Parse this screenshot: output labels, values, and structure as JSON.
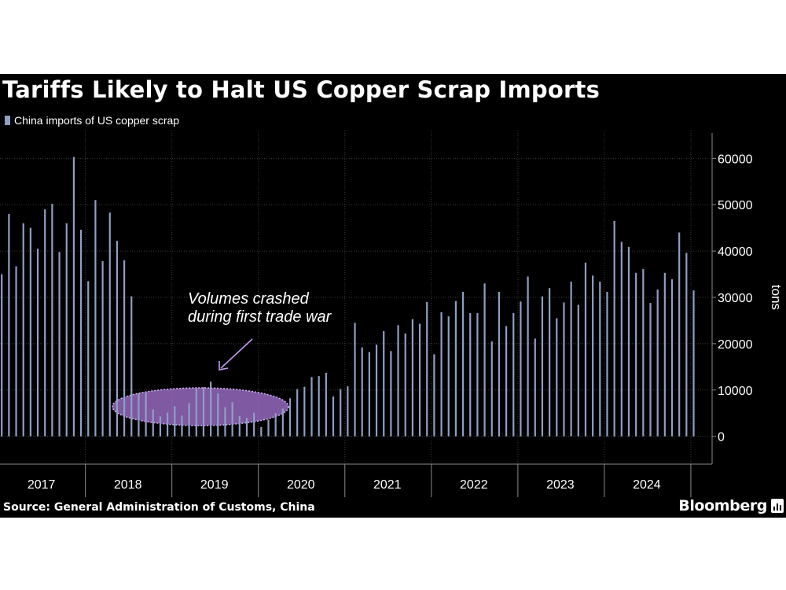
{
  "title": "Tariffs Likely to Halt US Copper Scrap Imports",
  "legend_label": "China imports of US copper scrap",
  "source": "Source: General Administration of Customs, China",
  "brand": "Bloomberg",
  "colors": {
    "bar": "#8f9fc4",
    "highlight": "#b07ce0",
    "arrow": "#c29bf0",
    "grid": "#3a3a3a",
    "axis": "#8a8a8a",
    "text": "#ffffff"
  },
  "chart_data": {
    "type": "bar",
    "title": "Tariffs Likely to Halt US Copper Scrap Imports",
    "ylabel": "tons",
    "ylim": [
      -6000,
      66000
    ],
    "yticks": [
      0,
      10000,
      20000,
      30000,
      40000,
      50000,
      60000
    ],
    "grid": true,
    "legend_position": "top-left",
    "year_labels": [
      "2017",
      "2018",
      "2019",
      "2020",
      "2021",
      "2022",
      "2023",
      "2024"
    ],
    "annotation": {
      "line1": "Volumes crashed",
      "line2": "during first trade war"
    },
    "series": [
      {
        "name": "China imports of US copper scrap",
        "x": [
          "2017-01",
          "2017-02",
          "2017-03",
          "2017-04",
          "2017-05",
          "2017-06",
          "2017-07",
          "2017-08",
          "2017-09",
          "2017-10",
          "2017-11",
          "2017-12",
          "2018-01",
          "2018-02",
          "2018-03",
          "2018-04",
          "2018-05",
          "2018-06",
          "2018-07",
          "2018-08",
          "2018-09",
          "2018-10",
          "2018-11",
          "2018-12",
          "2019-01",
          "2019-02",
          "2019-03",
          "2019-04",
          "2019-05",
          "2019-06",
          "2019-07",
          "2019-08",
          "2019-09",
          "2019-10",
          "2019-11",
          "2019-12",
          "2020-01",
          "2020-02",
          "2020-03",
          "2020-04",
          "2020-05",
          "2020-06",
          "2020-07",
          "2020-08",
          "2020-09",
          "2020-10",
          "2020-11",
          "2020-12",
          "2021-01",
          "2021-02",
          "2021-03",
          "2021-04",
          "2021-05",
          "2021-06",
          "2021-07",
          "2021-08",
          "2021-09",
          "2021-10",
          "2021-11",
          "2021-12",
          "2022-01",
          "2022-02",
          "2022-03",
          "2022-04",
          "2022-05",
          "2022-06",
          "2022-07",
          "2022-08",
          "2022-09",
          "2022-10",
          "2022-11",
          "2022-12",
          "2023-01",
          "2023-02",
          "2023-03",
          "2023-04",
          "2023-05",
          "2023-06",
          "2023-07",
          "2023-08",
          "2023-09",
          "2023-10",
          "2023-11",
          "2023-12",
          "2024-01",
          "2024-02",
          "2024-03",
          "2024-04",
          "2024-05",
          "2024-06",
          "2024-07",
          "2024-08",
          "2024-09",
          "2024-10",
          "2024-11",
          "2024-12"
        ],
        "values": [
          35000,
          48000,
          36700,
          46000,
          45000,
          40500,
          49000,
          50200,
          39800,
          46000,
          60300,
          44600,
          33500,
          51000,
          37800,
          48300,
          42200,
          38000,
          30200,
          9200,
          9600,
          5800,
          4300,
          5100,
          6500,
          4500,
          7200,
          10300,
          10600,
          11800,
          9300,
          6300,
          7400,
          4400,
          4000,
          5100,
          2000,
          3600,
          5000,
          6000,
          8200,
          10200,
          10700,
          12800,
          13000,
          13700,
          8600,
          10200,
          10800,
          24500,
          19200,
          18200,
          19800,
          22700,
          18400,
          24000,
          22200,
          25300,
          24300,
          29000,
          17700,
          26800,
          25900,
          29200,
          31200,
          26600,
          26600,
          33000,
          20500,
          31200,
          23800,
          26600,
          29100,
          34500,
          21100,
          30200,
          32000,
          25500,
          28900,
          33400,
          28400,
          37500,
          34700,
          33400,
          31200,
          46500,
          42000,
          40900,
          35300,
          36100,
          28800,
          31700,
          35300,
          33900,
          44000,
          39600
        ]
      }
    ],
    "trailing_values": [
      31500
    ]
  }
}
